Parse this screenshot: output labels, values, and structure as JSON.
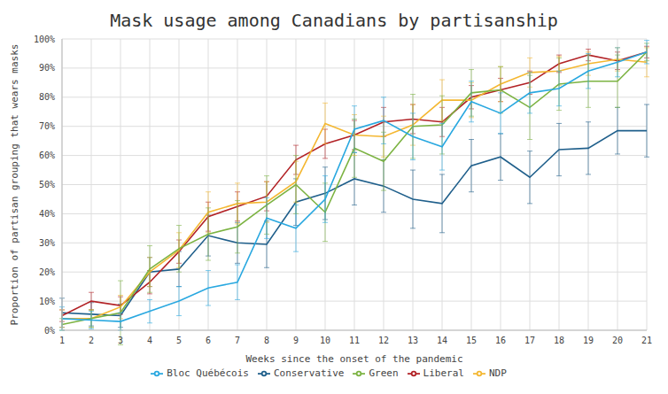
{
  "chart_data": {
    "type": "line",
    "title": "Mask usage among Canadians by partisanship",
    "x_label": "Weeks since the onset of the pandemic",
    "y_label": "Proportion of partisan grouping that wears masks",
    "categories": [
      "1",
      "2",
      "3",
      "4",
      "5",
      "6",
      "7",
      "8",
      "9",
      "10",
      "11",
      "12",
      "13",
      "14",
      "15",
      "16",
      "17",
      "18",
      "19",
      "20",
      "21"
    ],
    "series": [
      {
        "name": "Conservative",
        "color": "#1f5f8b",
        "values": [
          6,
          5.5,
          5,
          20,
          21,
          32.5,
          30,
          29.5,
          44,
          47,
          52,
          49.5,
          45,
          43.5,
          56.5,
          59.5,
          52.5,
          62,
          62.5,
          68.5,
          68.5
        ],
        "errors": [
          5,
          4,
          4,
          5,
          6,
          7,
          7,
          8,
          8,
          9,
          9,
          9,
          10,
          10,
          9,
          8,
          9,
          9,
          9,
          8,
          9
        ]
      },
      {
        "name": "Liberal",
        "color": "#b22226",
        "values": [
          5,
          10,
          8.5,
          16.5,
          27,
          39,
          42.5,
          46,
          58.5,
          64,
          67,
          71.5,
          72.5,
          71.5,
          80,
          82.5,
          85,
          91.5,
          94.5,
          92.5,
          95.5
        ],
        "errors": [
          2,
          3,
          3,
          4,
          4,
          5,
          5,
          5,
          5,
          5,
          5,
          5,
          5,
          5,
          4,
          4,
          4,
          3,
          2,
          3,
          2
        ]
      },
      {
        "name": "NDP",
        "color": "#f4b731",
        "values": [
          4,
          4,
          8,
          20,
          27.5,
          40.5,
          43.5,
          44,
          51,
          71,
          67,
          66.5,
          70.5,
          79,
          79,
          84.5,
          88.5,
          89,
          91.5,
          93,
          92
        ],
        "errors": [
          3,
          3,
          4,
          5,
          6,
          7,
          7,
          7,
          7,
          7,
          7,
          7,
          7,
          7,
          6,
          6,
          5,
          5,
          4,
          4,
          5
        ]
      },
      {
        "name": "Green",
        "color": "#7cb342",
        "values": [
          2,
          4,
          6,
          21,
          28,
          33,
          35.5,
          43,
          50,
          40.5,
          62.5,
          58,
          70,
          70.5,
          81.5,
          82.5,
          76.5,
          84.5,
          85.5,
          85.5,
          95.5
        ],
        "errors": [
          2,
          3,
          11,
          8,
          8,
          9,
          9,
          10,
          10,
          10,
          10,
          10,
          11,
          10,
          8,
          8,
          11,
          9,
          9,
          9,
          3
        ]
      },
      {
        "name": "Bloc Québécois",
        "color": "#29a8e0",
        "values": [
          4,
          3.5,
          3,
          6.5,
          10,
          14.5,
          16.5,
          38.5,
          35,
          45,
          69,
          72,
          66.5,
          63,
          78.5,
          74.5,
          81.5,
          83,
          89,
          92,
          95.5
        ],
        "errors": [
          4,
          3,
          3,
          4,
          5,
          6,
          6,
          7,
          8,
          8,
          8,
          8,
          8,
          8,
          7,
          7,
          7,
          6,
          6,
          5,
          4
        ]
      }
    ],
    "ylim": [
      0,
      100
    ],
    "yticks": [
      {
        "value": 0,
        "label": "0%"
      },
      {
        "value": 10,
        "label": "10%"
      },
      {
        "value": 20,
        "label": "20%"
      },
      {
        "value": 30,
        "label": "30%"
      },
      {
        "value": 40,
        "label": "40%"
      },
      {
        "value": 50,
        "label": "50%"
      },
      {
        "value": 60,
        "label": "60%"
      },
      {
        "value": 70,
        "label": "70%"
      },
      {
        "value": 80,
        "label": "80%"
      },
      {
        "value": 90,
        "label": "90%"
      },
      {
        "value": 100,
        "label": "100%"
      }
    ],
    "grid": true,
    "legend": "bottom"
  }
}
